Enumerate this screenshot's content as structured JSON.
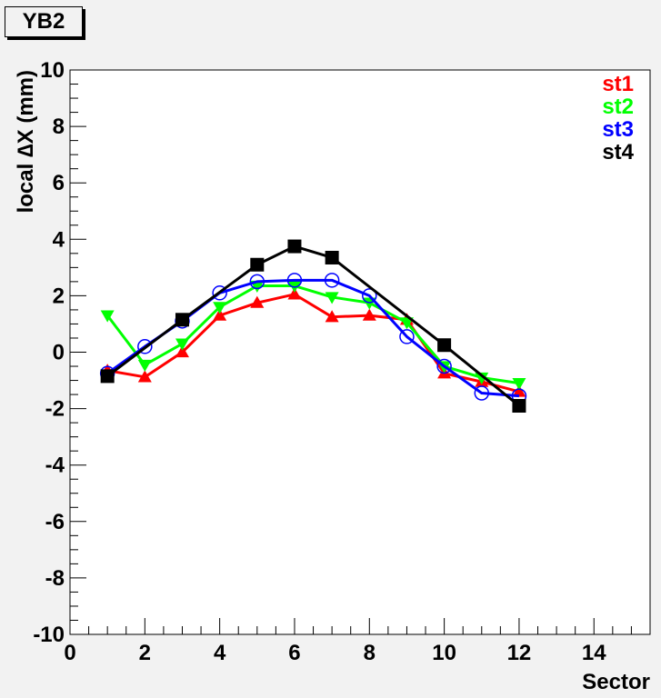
{
  "chart_data": {
    "type": "line",
    "title": "YB2",
    "xlabel": "Sector",
    "ylabel": "local ∆X (mm)",
    "xlim": [
      0,
      15.5
    ],
    "ylim": [
      -10,
      10
    ],
    "xticks": [
      0,
      2,
      4,
      6,
      8,
      10,
      12,
      14
    ],
    "yticks": [
      -10,
      -8,
      -6,
      -4,
      -2,
      0,
      2,
      4,
      6,
      8,
      10
    ],
    "grid": false,
    "legend_position": "top-right",
    "series": [
      {
        "name": "st1",
        "color": "#ff0000",
        "marker": "triangle-up",
        "x": [
          1,
          2,
          3,
          4,
          5,
          6,
          7,
          8,
          9,
          10,
          11,
          12
        ],
        "y": [
          -0.65,
          -0.88,
          0.0,
          1.3,
          1.75,
          2.05,
          1.25,
          1.3,
          1.15,
          -0.75,
          -1.05,
          -1.4
        ]
      },
      {
        "name": "st2",
        "color": "#00ff00",
        "marker": "triangle-down",
        "x": [
          1,
          2,
          3,
          4,
          5,
          6,
          7,
          8,
          9,
          10,
          11,
          12
        ],
        "y": [
          1.3,
          -0.45,
          0.3,
          1.6,
          2.35,
          2.35,
          1.95,
          1.75,
          1.05,
          -0.5,
          -0.9,
          -1.1
        ]
      },
      {
        "name": "st3",
        "color": "#0000ff",
        "marker": "circle-open",
        "x": [
          1,
          2,
          3,
          4,
          5,
          6,
          7,
          8,
          9,
          10,
          11,
          12
        ],
        "y": [
          -0.75,
          0.2,
          1.1,
          2.1,
          2.5,
          2.55,
          2.55,
          2.0,
          0.55,
          -0.5,
          -1.45,
          -1.55
        ]
      },
      {
        "name": "st4",
        "color": "#000000",
        "marker": "square",
        "x": [
          1,
          3,
          5,
          6,
          7,
          10,
          12
        ],
        "y": [
          -0.85,
          1.15,
          3.1,
          3.75,
          3.35,
          0.25,
          -1.9
        ]
      }
    ]
  }
}
